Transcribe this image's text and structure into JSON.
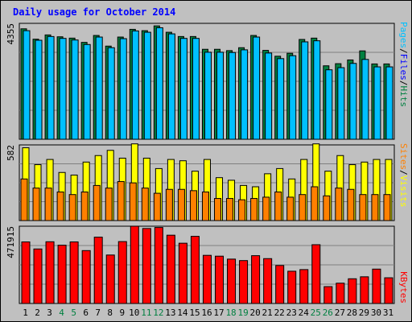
{
  "chart_data": [
    {
      "type": "bar",
      "panel": "top",
      "title": "Daily usage for October 2014",
      "ylabel_parts": [
        {
          "text": "Pages",
          "color": "#00c0ff"
        },
        {
          "text": "/",
          "color": "#000000"
        },
        {
          "text": "Files",
          "color": "#0000ff"
        },
        {
          "text": "/",
          "color": "#000000"
        },
        {
          "text": "Hits",
          "color": "#008040"
        }
      ],
      "ytick_label": "4355",
      "ylim": [
        0,
        4355
      ],
      "categories": [
        "1",
        "2",
        "3",
        "4",
        "5",
        "6",
        "7",
        "8",
        "9",
        "10",
        "11",
        "12",
        "13",
        "14",
        "15",
        "16",
        "17",
        "18",
        "19",
        "20",
        "21",
        "22",
        "23",
        "24",
        "25",
        "26",
        "27",
        "28",
        "29",
        "30",
        "31"
      ],
      "weekend_days": [
        "4",
        "5",
        "11",
        "12",
        "18",
        "19",
        "25",
        "26"
      ],
      "grid": true,
      "series": [
        {
          "name": "Hits",
          "color": "#008040",
          "values": [
            4150,
            3760,
            3920,
            3850,
            3800,
            3640,
            3900,
            3500,
            3840,
            4130,
            4080,
            4260,
            4020,
            3860,
            3860,
            3380,
            3380,
            3330,
            3440,
            3900,
            3340,
            3120,
            3230,
            3750,
            3800,
            2760,
            2840,
            2980,
            3320,
            2830,
            2830
          ]
        },
        {
          "name": "Files",
          "color": "#00c0ff",
          "values": [
            4080,
            3720,
            3860,
            3790,
            3730,
            3560,
            3840,
            3440,
            3780,
            4070,
            4020,
            4190,
            3960,
            3790,
            3790,
            3270,
            3270,
            3260,
            3360,
            3840,
            3240,
            3030,
            3140,
            3660,
            3700,
            2610,
            2690,
            2850,
            3000,
            2720,
            2720
          ]
        },
        {
          "name": "Pages",
          "color": "#00c0ff",
          "values": [
            4080,
            3720,
            3860,
            3790,
            3730,
            3560,
            3840,
            3440,
            3780,
            4070,
            4020,
            4190,
            3960,
            3790,
            3790,
            3270,
            3270,
            3260,
            3360,
            3840,
            3240,
            3030,
            3140,
            3660,
            3700,
            2610,
            2690,
            2850,
            3000,
            2720,
            2720
          ]
        }
      ]
    },
    {
      "type": "bar",
      "panel": "middle",
      "ylabel_parts": [
        {
          "text": "Sites",
          "color": "#ff8000"
        },
        {
          "text": "/",
          "color": "#000000"
        },
        {
          "text": "Visits",
          "color": "#ffff00"
        }
      ],
      "ytick_label": "582",
      "ylim": [
        0,
        582
      ],
      "grid": true,
      "series": [
        {
          "name": "Visits",
          "color": "#ffff00",
          "values": [
            560,
            430,
            470,
            370,
            350,
            450,
            500,
            540,
            480,
            590,
            480,
            400,
            470,
            460,
            380,
            470,
            330,
            310,
            270,
            260,
            360,
            400,
            320,
            470,
            590,
            380,
            500,
            430,
            450,
            470,
            470
          ]
        },
        {
          "name": "Sites",
          "color": "#ff8000",
          "values": [
            320,
            250,
            250,
            220,
            200,
            220,
            270,
            250,
            300,
            290,
            250,
            210,
            240,
            240,
            230,
            220,
            170,
            170,
            160,
            170,
            180,
            220,
            180,
            200,
            260,
            190,
            250,
            240,
            200,
            200,
            200
          ]
        }
      ]
    },
    {
      "type": "bar",
      "panel": "bottom",
      "ylabel_parts": [
        {
          "text": "KBytes",
          "color": "#ff0000"
        }
      ],
      "ytick_label": "471915",
      "ylim": [
        0,
        471915
      ],
      "grid": true,
      "series": [
        {
          "name": "KBytes",
          "color": "#ff0000",
          "values": [
            376000,
            333000,
            377000,
            356000,
            376000,
            323000,
            405000,
            296000,
            378000,
            472000,
            458000,
            464000,
            417000,
            368000,
            410000,
            294000,
            289000,
            271000,
            262000,
            292000,
            274000,
            232000,
            197000,
            207000,
            359000,
            103000,
            124000,
            151000,
            163000,
            210000,
            157000
          ]
        }
      ]
    }
  ]
}
